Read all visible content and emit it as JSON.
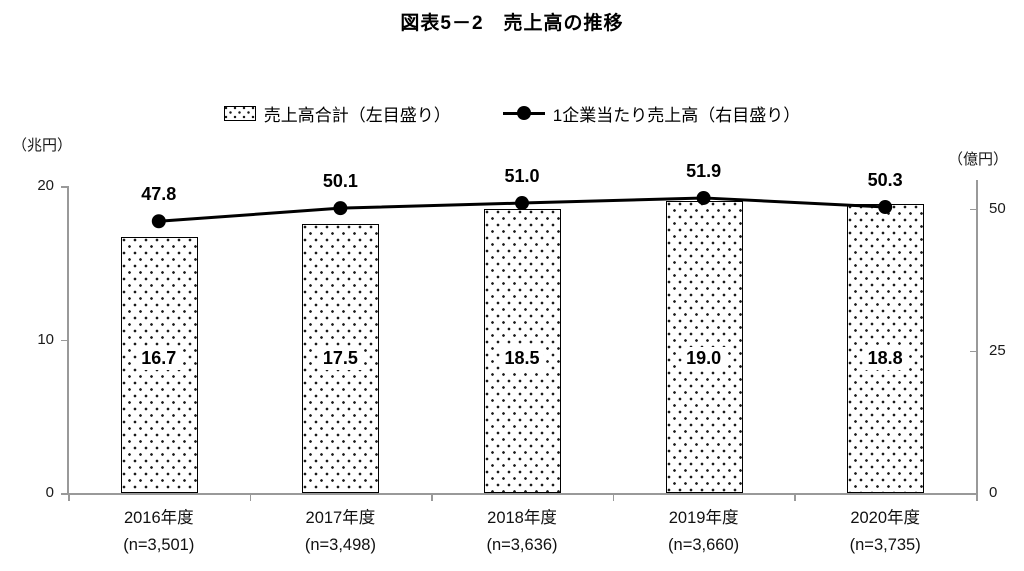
{
  "title": "図表5－2　売上高の推移",
  "legend": {
    "bar_label": "売上高合計（左目盛り）",
    "line_label": "1企業当たり売上高（右目盛り）"
  },
  "chart_data": {
    "type": "bar+line",
    "title": "図表5－2　売上高の推移",
    "categories": [
      "2016年度",
      "2017年度",
      "2018年度",
      "2019年度",
      "2020年度"
    ],
    "category_sublabels": [
      "(n=3,501)",
      "(n=3,498)",
      "(n=3,636)",
      "(n=3,660)",
      "(n=3,735)"
    ],
    "series": [
      {
        "name": "売上高合計（左目盛り）",
        "type": "bar",
        "axis": "left",
        "pattern": "dotted",
        "values": [
          16.7,
          17.5,
          18.5,
          19.0,
          18.8
        ],
        "value_labels": [
          "16.7",
          "17.5",
          "18.5",
          "19.0",
          "18.8"
        ]
      },
      {
        "name": "1企業当たり売上高（右目盛り）",
        "type": "line",
        "axis": "right",
        "values": [
          47.8,
          50.1,
          51.0,
          51.9,
          50.3
        ],
        "value_labels": [
          "47.8",
          "50.1",
          "51.0",
          "51.9",
          "50.3"
        ]
      }
    ],
    "left_axis": {
      "unit_label": "（兆円）",
      "ticks": [
        0,
        10,
        20
      ],
      "range": [
        0,
        20
      ]
    },
    "right_axis": {
      "unit_label": "（億円）",
      "ticks": [
        0,
        25,
        50
      ],
      "range": [
        0,
        54
      ]
    },
    "grid": false,
    "legend_position": "top"
  },
  "colors": {
    "bar_fill": "#ffffff",
    "bar_dots": "#1a1a1a",
    "bar_border": "#000000",
    "line": "#000000",
    "axis": "#999999",
    "text": "#000000"
  }
}
